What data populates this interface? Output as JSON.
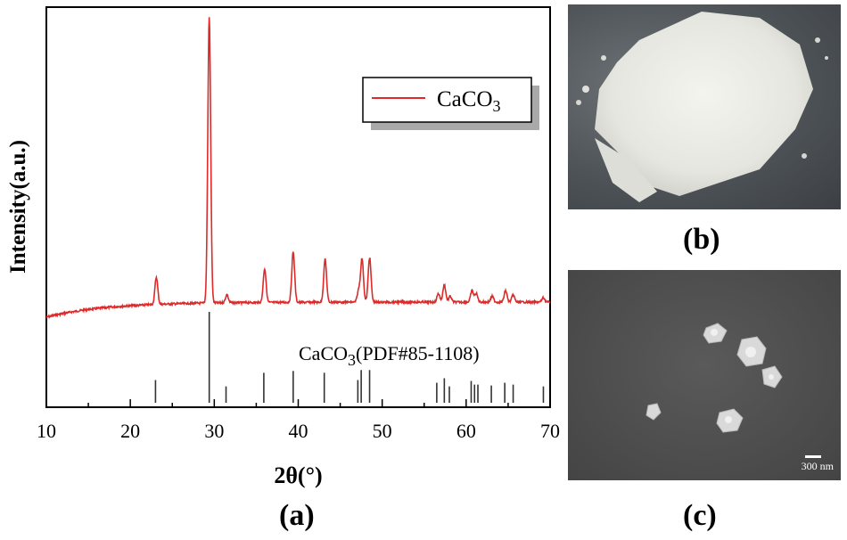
{
  "chart_data": {
    "type": "line",
    "title": "",
    "xlabel": "2θ(°)",
    "ylabel": "Intensity(a.u.)",
    "xlim": [
      10,
      70
    ],
    "xticks": [
      10,
      20,
      30,
      40,
      50,
      60,
      70
    ],
    "series": [
      {
        "name": "CaCO3",
        "color": "#dd2a2a",
        "peaks": [
          {
            "x": 23.1,
            "h": 0.095
          },
          {
            "x": 29.4,
            "h": 1.0
          },
          {
            "x": 31.5,
            "h": 0.028
          },
          {
            "x": 36.0,
            "h": 0.118
          },
          {
            "x": 39.4,
            "h": 0.176
          },
          {
            "x": 43.2,
            "h": 0.15
          },
          {
            "x": 47.2,
            "h": 0.04
          },
          {
            "x": 47.6,
            "h": 0.15
          },
          {
            "x": 48.5,
            "h": 0.156
          },
          {
            "x": 56.7,
            "h": 0.03
          },
          {
            "x": 57.4,
            "h": 0.06
          },
          {
            "x": 58.1,
            "h": 0.02
          },
          {
            "x": 60.7,
            "h": 0.04
          },
          {
            "x": 61.2,
            "h": 0.03
          },
          {
            "x": 63.1,
            "h": 0.02
          },
          {
            "x": 64.7,
            "h": 0.04
          },
          {
            "x": 65.6,
            "h": 0.025
          },
          {
            "x": 69.2,
            "h": 0.015
          }
        ]
      }
    ],
    "reference": {
      "label_main": "CaCO",
      "label_sub": "3",
      "label_tail": "(PDF#85-1108)",
      "lines": [
        {
          "x": 23.0,
          "h": 0.25
        },
        {
          "x": 29.4,
          "h": 1.0
        },
        {
          "x": 31.4,
          "h": 0.18
        },
        {
          "x": 35.9,
          "h": 0.33
        },
        {
          "x": 39.4,
          "h": 0.35
        },
        {
          "x": 43.1,
          "h": 0.33
        },
        {
          "x": 47.1,
          "h": 0.25
        },
        {
          "x": 47.5,
          "h": 0.36
        },
        {
          "x": 48.5,
          "h": 0.36
        },
        {
          "x": 56.5,
          "h": 0.22
        },
        {
          "x": 57.4,
          "h": 0.27
        },
        {
          "x": 58.0,
          "h": 0.18
        },
        {
          "x": 60.6,
          "h": 0.24
        },
        {
          "x": 61.0,
          "h": 0.2
        },
        {
          "x": 61.4,
          "h": 0.2
        },
        {
          "x": 63.0,
          "h": 0.19
        },
        {
          "x": 64.6,
          "h": 0.22
        },
        {
          "x": 65.6,
          "h": 0.2
        },
        {
          "x": 69.2,
          "h": 0.18
        }
      ]
    },
    "legend": {
      "position": "top-right",
      "main": "CaCO",
      "sub": "3"
    },
    "grid": false
  },
  "panels": {
    "a": "(a)",
    "b": "(b)",
    "c": "(c)"
  },
  "sem": {
    "scale_label": "300  nm"
  }
}
